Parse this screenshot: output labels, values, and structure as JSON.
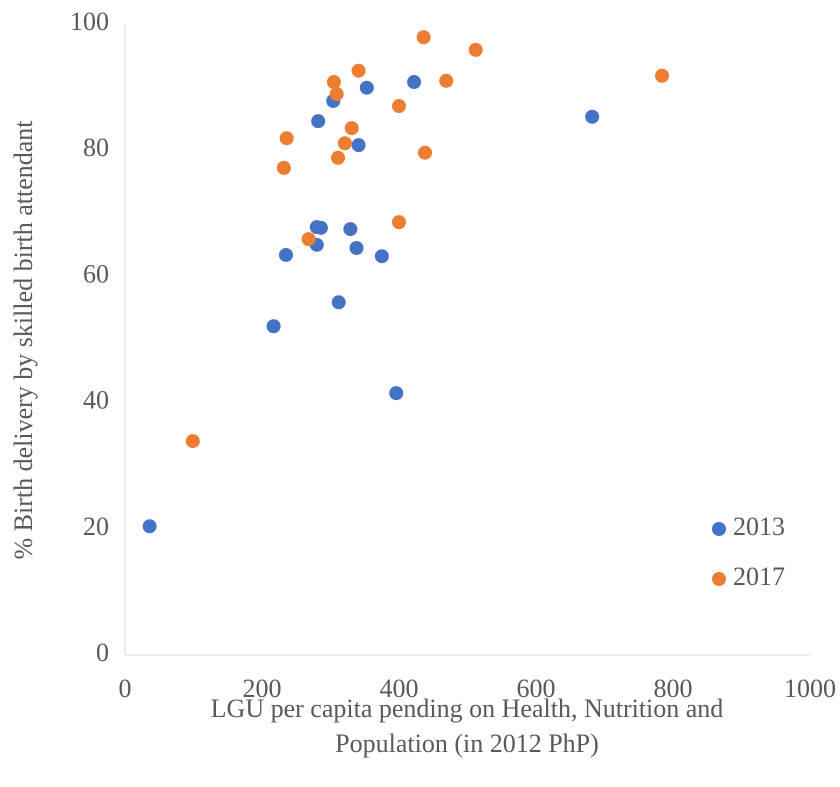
{
  "chart_data": {
    "type": "scatter",
    "xlabel": [
      "LGU per capita pending on Health, Nutrition and",
      "Population (in 2012 PhP)"
    ],
    "ylabel": "% Birth delivery by skilled birth attendant",
    "xlim": [
      0,
      1000
    ],
    "xticks": [
      0,
      200,
      400,
      600,
      800,
      1000
    ],
    "ylim": [
      0,
      100
    ],
    "yticks": [
      0,
      20,
      40,
      60,
      80,
      100
    ],
    "grid": false,
    "legend": "lower right",
    "series": [
      {
        "name": "2013",
        "color": "#4472c4",
        "x": [
          36,
          217,
          235,
          282,
          280,
          286,
          280,
          304,
          329,
          338,
          341,
          312,
          353,
          375,
          396,
          422,
          682
        ],
        "values": [
          20.4,
          52.1,
          63.4,
          84.6,
          67.8,
          67.7,
          65,
          87.8,
          67.5,
          64.5,
          80.8,
          55.9,
          89.9,
          63.2,
          41.5,
          90.8,
          85.3
        ]
      },
      {
        "name": "2017",
        "color": "#ed7d31",
        "x": [
          99,
          232,
          236,
          268,
          305,
          309,
          311,
          321,
          331,
          341,
          400,
          400,
          436,
          438,
          469,
          512,
          784
        ],
        "values": [
          33.9,
          77.2,
          81.9,
          65.9,
          90.8,
          88.9,
          78.8,
          81.1,
          83.5,
          92.6,
          87,
          68.6,
          97.9,
          79.6,
          91,
          95.9,
          91.8
        ]
      }
    ]
  }
}
